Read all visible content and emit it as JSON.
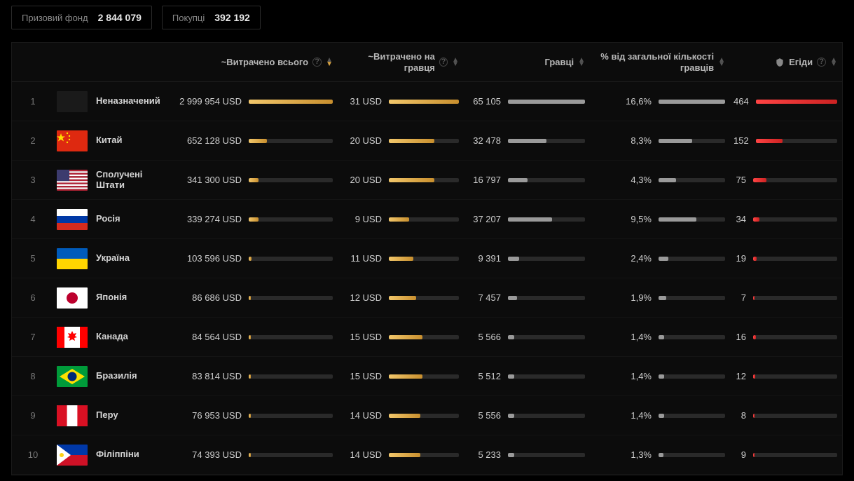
{
  "colors": {
    "bg": "#000000",
    "panel": "#0c0c0c",
    "border": "#1a1a1a",
    "text_muted": "#888",
    "text": "#cfcfcf",
    "text_strong": "#e8e8e8",
    "bar_track": "#2a2a2a",
    "bar_gold_from": "#f2c76b",
    "bar_gold_to": "#c88f2e",
    "bar_gray": "#9a9a9a",
    "bar_red_from": "#ff4444",
    "bar_red_to": "#cc2222",
    "sort_active": "#d9a441"
  },
  "top": {
    "prize_label": "Призовий фонд",
    "prize_value": "2 844 079",
    "buyers_label": "Покупці",
    "buyers_value": "392 192"
  },
  "headers": {
    "spent": "~Витрачено всього",
    "per_player": "~Витрачено на гравця",
    "players": "Гравці",
    "pct": "% від загальної кількості гравців",
    "aegis": "Егіди"
  },
  "maxes": {
    "spent": 2999954,
    "per_player": 31,
    "players": 65105,
    "pct": 16.6,
    "aegis": 464
  },
  "rows": [
    {
      "rank": 1,
      "name": "Неназначений",
      "flag": "unassigned",
      "spent": 2999954,
      "spent_text": "2 999 954 USD",
      "per_player": 31,
      "per_player_text": "31 USD",
      "players": 65105,
      "players_text": "65 105",
      "pct": 16.6,
      "pct_text": "16,6%",
      "aegis": 464,
      "aegis_text": "464"
    },
    {
      "rank": 2,
      "name": "Китай",
      "flag": "cn",
      "spent": 652128,
      "spent_text": "652 128 USD",
      "per_player": 20,
      "per_player_text": "20 USD",
      "players": 32478,
      "players_text": "32 478",
      "pct": 8.3,
      "pct_text": "8,3%",
      "aegis": 152,
      "aegis_text": "152"
    },
    {
      "rank": 3,
      "name": "Сполучені Штати",
      "flag": "us",
      "spent": 341300,
      "spent_text": "341 300 USD",
      "per_player": 20,
      "per_player_text": "20 USD",
      "players": 16797,
      "players_text": "16 797",
      "pct": 4.3,
      "pct_text": "4,3%",
      "aegis": 75,
      "aegis_text": "75"
    },
    {
      "rank": 4,
      "name": "Росія",
      "flag": "ru",
      "spent": 339274,
      "spent_text": "339 274 USD",
      "per_player": 9,
      "per_player_text": "9 USD",
      "players": 37207,
      "players_text": "37 207",
      "pct": 9.5,
      "pct_text": "9,5%",
      "aegis": 34,
      "aegis_text": "34"
    },
    {
      "rank": 5,
      "name": "Україна",
      "flag": "ua",
      "spent": 103596,
      "spent_text": "103 596 USD",
      "per_player": 11,
      "per_player_text": "11 USD",
      "players": 9391,
      "players_text": "9 391",
      "pct": 2.4,
      "pct_text": "2,4%",
      "aegis": 19,
      "aegis_text": "19"
    },
    {
      "rank": 6,
      "name": "Японія",
      "flag": "jp",
      "spent": 86686,
      "spent_text": "86 686 USD",
      "per_player": 12,
      "per_player_text": "12 USD",
      "players": 7457,
      "players_text": "7 457",
      "pct": 1.9,
      "pct_text": "1,9%",
      "aegis": 7,
      "aegis_text": "7"
    },
    {
      "rank": 7,
      "name": "Канада",
      "flag": "ca",
      "spent": 84564,
      "spent_text": "84 564 USD",
      "per_player": 15,
      "per_player_text": "15 USD",
      "players": 5566,
      "players_text": "5 566",
      "pct": 1.4,
      "pct_text": "1,4%",
      "aegis": 16,
      "aegis_text": "16"
    },
    {
      "rank": 8,
      "name": "Бразилія",
      "flag": "br",
      "spent": 83814,
      "spent_text": "83 814 USD",
      "per_player": 15,
      "per_player_text": "15 USD",
      "players": 5512,
      "players_text": "5 512",
      "pct": 1.4,
      "pct_text": "1,4%",
      "aegis": 12,
      "aegis_text": "12"
    },
    {
      "rank": 9,
      "name": "Перу",
      "flag": "pe",
      "spent": 76953,
      "spent_text": "76 953 USD",
      "per_player": 14,
      "per_player_text": "14 USD",
      "players": 5556,
      "players_text": "5 556",
      "pct": 1.4,
      "pct_text": "1,4%",
      "aegis": 8,
      "aegis_text": "8"
    },
    {
      "rank": 10,
      "name": "Філіппіни",
      "flag": "ph",
      "spent": 74393,
      "spent_text": "74 393 USD",
      "per_player": 14,
      "per_player_text": "14 USD",
      "players": 5233,
      "players_text": "5 233",
      "pct": 1.3,
      "pct_text": "1,3%",
      "aegis": 9,
      "aegis_text": "9"
    }
  ]
}
